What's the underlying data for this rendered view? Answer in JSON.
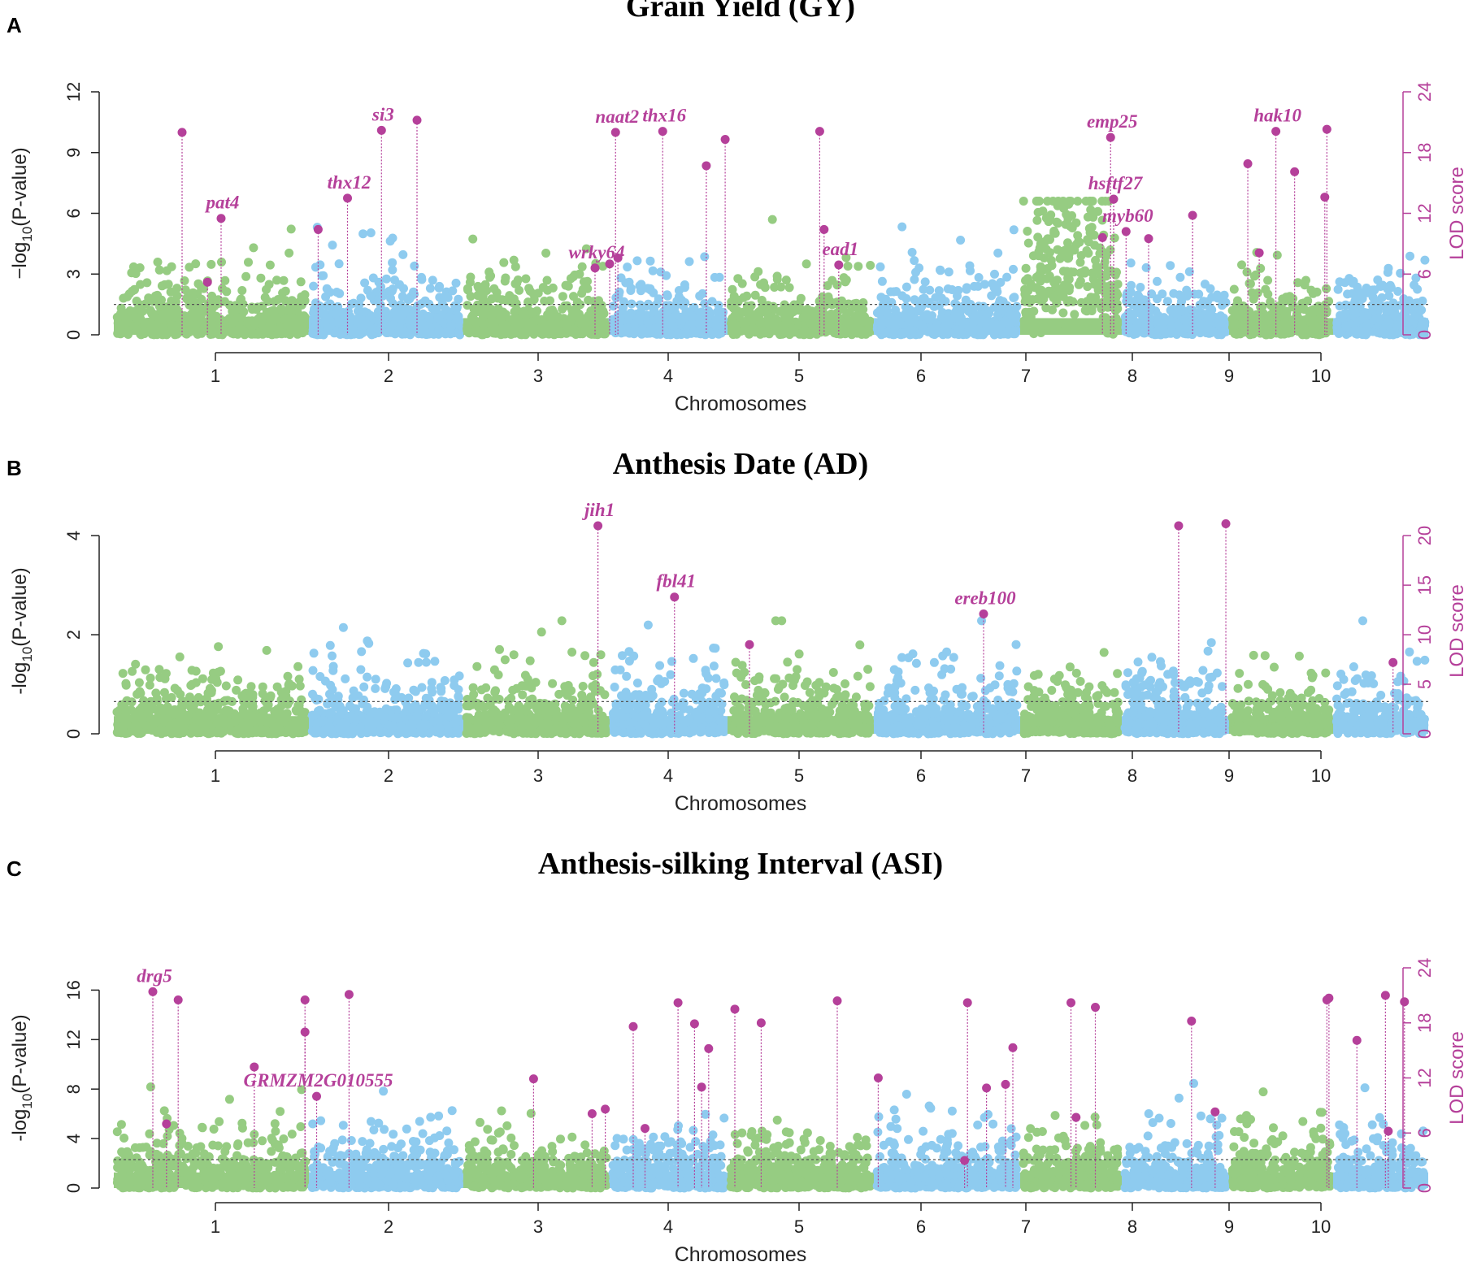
{
  "figure": {
    "colors": {
      "odd_chromosome": "#96cc82",
      "even_chromosome": "#8ecbef",
      "qtl": "#b5409a",
      "threshold": "#555555",
      "axis": "#222222"
    }
  },
  "chart_data": [
    {
      "panel": "A",
      "type": "scatter",
      "title": "Grain Yield (GY)",
      "xlabel": "Chromosomes",
      "ylabel": "−log10(P-value)",
      "ylabel_parts": {
        "pre": "−log",
        "sub": "10",
        "post": "(P-value)"
      },
      "y2label": "LOD score",
      "chromosomes": [
        "1",
        "2",
        "3",
        "4",
        "5",
        "6",
        "7",
        "8",
        "9",
        "10"
      ],
      "ylim": [
        0,
        12
      ],
      "yticks": [
        0,
        3,
        6,
        9,
        12
      ],
      "y2lim": [
        0,
        24
      ],
      "y2ticks": [
        0,
        6,
        12,
        18,
        24
      ],
      "threshold": 1.5,
      "qtl_points": [
        {
          "chr": 1,
          "pos": 0.35,
          "lod": 20,
          "label": ""
        },
        {
          "chr": 1,
          "pos": 0.48,
          "lod": 5.2,
          "label": ""
        },
        {
          "chr": 1,
          "pos": 0.55,
          "lod": 11.5,
          "label": "pat4"
        },
        {
          "chr": 2,
          "pos": 0.06,
          "lod": 10.4,
          "label": ""
        },
        {
          "chr": 2,
          "pos": 0.25,
          "lod": 13.5,
          "label": "thx12"
        },
        {
          "chr": 2,
          "pos": 0.47,
          "lod": 20.2,
          "label": "si3"
        },
        {
          "chr": 2,
          "pos": 0.7,
          "lod": 21.2,
          "label": ""
        },
        {
          "chr": 3,
          "pos": 0.9,
          "lod": 6.6,
          "label": "wrky64"
        },
        {
          "chr": 3,
          "pos": 1.0,
          "lod": 7.0,
          "label": ""
        },
        {
          "chr": 4,
          "pos": 0.05,
          "lod": 20,
          "label": "naat2"
        },
        {
          "chr": 4,
          "pos": 0.07,
          "lod": 7.6,
          "label": ""
        },
        {
          "chr": 4,
          "pos": 0.45,
          "lod": 20.1,
          "label": "thx16"
        },
        {
          "chr": 4,
          "pos": 0.82,
          "lod": 16.7,
          "label": ""
        },
        {
          "chr": 4,
          "pos": 0.98,
          "lod": 19.3,
          "label": ""
        },
        {
          "chr": 5,
          "pos": 0.63,
          "lod": 20.1,
          "label": ""
        },
        {
          "chr": 5,
          "pos": 0.66,
          "lod": 10.4,
          "label": ""
        },
        {
          "chr": 5,
          "pos": 0.76,
          "lod": 6.9,
          "label": "ead1"
        },
        {
          "chr": 7,
          "pos": 0.81,
          "lod": 9.6,
          "label": ""
        },
        {
          "chr": 7,
          "pos": 0.89,
          "lod": 19.5,
          "label": "emp25"
        },
        {
          "chr": 7,
          "pos": 0.92,
          "lod": 13.4,
          "label": "hsftf27"
        },
        {
          "chr": 8,
          "pos": 0.04,
          "lod": 10.2,
          "label": "myb60"
        },
        {
          "chr": 8,
          "pos": 0.25,
          "lod": 9.5,
          "label": ""
        },
        {
          "chr": 8,
          "pos": 0.66,
          "lod": 11.8,
          "label": ""
        },
        {
          "chr": 9,
          "pos": 0.18,
          "lod": 16.9,
          "label": ""
        },
        {
          "chr": 9,
          "pos": 0.29,
          "lod": 8.1,
          "label": ""
        },
        {
          "chr": 9,
          "pos": 0.45,
          "lod": 20.1,
          "label": "hak10"
        },
        {
          "chr": 9,
          "pos": 0.63,
          "lod": 16.1,
          "label": ""
        },
        {
          "chr": 9,
          "pos": 0.92,
          "lod": 13.6,
          "label": ""
        },
        {
          "chr": 9,
          "pos": 0.94,
          "lod": 20.3,
          "label": ""
        }
      ]
    },
    {
      "panel": "B",
      "type": "scatter",
      "title": "Anthesis Date (AD)",
      "xlabel": "Chromosomes",
      "ylabel": "-log10(P-value)",
      "ylabel_parts": {
        "pre": "-log",
        "sub": "10",
        "post": "(P-value)"
      },
      "y2label": "LOD score",
      "chromosomes": [
        "1",
        "2",
        "3",
        "4",
        "5",
        "6",
        "7",
        "8",
        "9",
        "10"
      ],
      "ylim": [
        0,
        4.15
      ],
      "yticks": [
        0,
        2,
        4
      ],
      "y2lim": [
        0,
        20.75
      ],
      "y2ticks": [
        0,
        5,
        10,
        15,
        20
      ],
      "threshold": 0.65,
      "qtl_points": [
        {
          "chr": 3,
          "pos": 0.92,
          "lod": 21.0,
          "label": "jih1"
        },
        {
          "chr": 4,
          "pos": 0.55,
          "lod": 13.8,
          "label": "fbl41"
        },
        {
          "chr": 5,
          "pos": 0.15,
          "lod": 9.0,
          "label": ""
        },
        {
          "chr": 6,
          "pos": 0.75,
          "lod": 12.1,
          "label": "ereb100"
        },
        {
          "chr": 8,
          "pos": 0.53,
          "lod": 21.0,
          "label": ""
        },
        {
          "chr": 8,
          "pos": 0.97,
          "lod": 21.2,
          "label": ""
        },
        {
          "chr": 10,
          "pos": 0.63,
          "lod": 7.2,
          "label": ""
        }
      ]
    },
    {
      "panel": "C",
      "type": "scatter",
      "title": "Anthesis-silking Interval (ASI)",
      "xlabel": "Chromosomes",
      "ylabel": "-log10(P-value)",
      "ylabel_parts": {
        "pre": "-log",
        "sub": "10",
        "post": "(P-value)"
      },
      "y2label": "LOD score",
      "chromosomes": [
        "1",
        "2",
        "3",
        "4",
        "5",
        "6",
        "7",
        "8",
        "9",
        "10"
      ],
      "ylim": [
        0,
        17.8
      ],
      "yticks": [
        0,
        4,
        8,
        12,
        16
      ],
      "y2lim": [
        0,
        24
      ],
      "y2ticks": [
        0,
        6,
        12,
        18,
        24
      ],
      "threshold": 2.3,
      "qtl_points": [
        {
          "chr": 1,
          "pos": 0.2,
          "lod": 21.4,
          "label": "drg5"
        },
        {
          "chr": 1,
          "pos": 0.27,
          "lod": 7.0,
          "label": ""
        },
        {
          "chr": 1,
          "pos": 0.33,
          "lod": 20.5,
          "label": ""
        },
        {
          "chr": 1,
          "pos": 0.72,
          "lod": 13.2,
          "label": ""
        },
        {
          "chr": 1,
          "pos": 0.98,
          "lod": 20.5,
          "label": ""
        },
        {
          "chr": 1,
          "pos": 0.98,
          "lod": 17.0,
          "label": ""
        },
        {
          "chr": 2,
          "pos": 0.05,
          "lod": 10.0,
          "label": "GRMZM2G010555"
        },
        {
          "chr": 2,
          "pos": 0.26,
          "lod": 21.1,
          "label": ""
        },
        {
          "chr": 3,
          "pos": 0.48,
          "lod": 11.9,
          "label": ""
        },
        {
          "chr": 3,
          "pos": 0.88,
          "lod": 8.1,
          "label": ""
        },
        {
          "chr": 3,
          "pos": 0.97,
          "lod": 8.6,
          "label": ""
        },
        {
          "chr": 4,
          "pos": 0.2,
          "lod": 17.6,
          "label": ""
        },
        {
          "chr": 4,
          "pos": 0.3,
          "lod": 6.5,
          "label": ""
        },
        {
          "chr": 4,
          "pos": 0.58,
          "lod": 20.2,
          "label": ""
        },
        {
          "chr": 4,
          "pos": 0.72,
          "lod": 17.9,
          "label": ""
        },
        {
          "chr": 4,
          "pos": 0.78,
          "lod": 11.0,
          "label": ""
        },
        {
          "chr": 4,
          "pos": 0.84,
          "lod": 15.2,
          "label": ""
        },
        {
          "chr": 5,
          "pos": 0.05,
          "lod": 19.5,
          "label": ""
        },
        {
          "chr": 5,
          "pos": 0.23,
          "lod": 18.0,
          "label": ""
        },
        {
          "chr": 5,
          "pos": 0.75,
          "lod": 20.4,
          "label": ""
        },
        {
          "chr": 6,
          "pos": 0.03,
          "lod": 12.0,
          "label": ""
        },
        {
          "chr": 6,
          "pos": 0.62,
          "lod": 3.0,
          "label": ""
        },
        {
          "chr": 6,
          "pos": 0.64,
          "lod": 20.2,
          "label": ""
        },
        {
          "chr": 6,
          "pos": 0.77,
          "lod": 10.9,
          "label": ""
        },
        {
          "chr": 6,
          "pos": 0.9,
          "lod": 11.3,
          "label": ""
        },
        {
          "chr": 6,
          "pos": 0.95,
          "lod": 15.3,
          "label": ""
        },
        {
          "chr": 7,
          "pos": 0.5,
          "lod": 20.2,
          "label": ""
        },
        {
          "chr": 7,
          "pos": 0.55,
          "lod": 7.7,
          "label": ""
        },
        {
          "chr": 7,
          "pos": 0.74,
          "lod": 19.7,
          "label": ""
        },
        {
          "chr": 8,
          "pos": 0.65,
          "lod": 18.2,
          "label": ""
        },
        {
          "chr": 8,
          "pos": 0.87,
          "lod": 8.3,
          "label": ""
        },
        {
          "chr": 9,
          "pos": 0.94,
          "lod": 20.5,
          "label": ""
        },
        {
          "chr": 9,
          "pos": 0.96,
          "lod": 20.7,
          "label": ""
        },
        {
          "chr": 10,
          "pos": 0.25,
          "lod": 16.1,
          "label": ""
        },
        {
          "chr": 10,
          "pos": 0.55,
          "lod": 21.0,
          "label": ""
        },
        {
          "chr": 10,
          "pos": 0.58,
          "lod": 6.2,
          "label": ""
        },
        {
          "chr": 10,
          "pos": 0.75,
          "lod": 20.3,
          "label": ""
        }
      ]
    }
  ]
}
